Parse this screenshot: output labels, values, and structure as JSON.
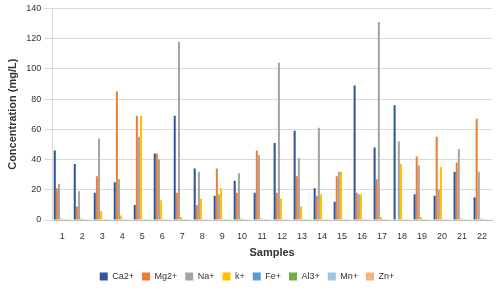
{
  "chart_data": {
    "type": "bar",
    "x_label": "Samples",
    "y_label": "Concentration (mg/L)",
    "categories": [
      "1",
      "2",
      "3",
      "4",
      "5",
      "6",
      "7",
      "8",
      "9",
      "10",
      "11",
      "12",
      "13",
      "14",
      "15",
      "16",
      "17",
      "18",
      "19",
      "20",
      "21",
      "22"
    ],
    "series": [
      {
        "name": "Ca2+",
        "color": "#2e5597",
        "values": [
          46,
          37,
          18,
          25,
          10,
          44,
          69,
          34,
          16,
          26,
          18,
          51,
          59,
          21,
          12,
          89,
          48,
          76,
          17,
          16,
          32,
          15
        ]
      },
      {
        "name": "Mg2+",
        "color": "#ed7d31",
        "values": [
          21,
          9,
          29,
          85,
          69,
          44,
          18,
          10,
          34,
          18,
          46,
          18,
          29,
          16,
          29,
          18,
          27,
          0.5,
          42,
          55,
          38,
          67
        ]
      },
      {
        "name": "Na+",
        "color": "#a5a5a5",
        "values": [
          24,
          19,
          54,
          27,
          55,
          40,
          118,
          32,
          17,
          31,
          43,
          104,
          41,
          61,
          32,
          17,
          131,
          52,
          36,
          20,
          47,
          32
        ]
      },
      {
        "name": "k+",
        "color": "#ffc000",
        "values": [
          1,
          1,
          6,
          3,
          69,
          13,
          2,
          14,
          21,
          1,
          1,
          14,
          9,
          17,
          32,
          17,
          2,
          37,
          2,
          35,
          1,
          1
        ]
      },
      {
        "name": "Fe+",
        "color": "#5b9bd5",
        "values": [
          0.5,
          0.5,
          0.5,
          0.5,
          0.5,
          0.5,
          0.5,
          0.5,
          0.5,
          0.5,
          0.5,
          0.5,
          0.5,
          0.5,
          0.5,
          0.5,
          0.5,
          0.5,
          0.5,
          0.5,
          0.5,
          0.5
        ]
      },
      {
        "name": "Al3+",
        "color": "#70ad47",
        "values": [
          0.5,
          0.5,
          0.5,
          0.5,
          0.5,
          0.5,
          0.5,
          0.5,
          0.5,
          0.5,
          0.5,
          0.5,
          0.5,
          0.5,
          0.5,
          0.5,
          0.5,
          0.5,
          0.5,
          0.5,
          0.5,
          0.5
        ]
      },
      {
        "name": "Mn+",
        "color": "#9dc3e6",
        "values": [
          0.5,
          0.5,
          0.5,
          0.5,
          0.5,
          0.5,
          0.5,
          0.5,
          0.5,
          0.5,
          0.5,
          0.5,
          0.5,
          0.5,
          0.5,
          0.5,
          0.5,
          0.5,
          0.5,
          0.5,
          0.5,
          0.5
        ]
      },
      {
        "name": "Zn+",
        "color": "#f4b183",
        "values": [
          0.5,
          0.5,
          0.5,
          0.5,
          0.5,
          0.5,
          0.5,
          0.5,
          0.5,
          0.5,
          0.5,
          0.5,
          0.5,
          0.5,
          0.5,
          0.5,
          0.5,
          0.5,
          0.5,
          0.5,
          0.5,
          0.5
        ]
      }
    ],
    "ylim": [
      0,
      140
    ],
    "yticks": [
      0,
      20,
      40,
      60,
      80,
      100,
      120,
      140
    ],
    "grid": true,
    "legend": "bottom"
  }
}
